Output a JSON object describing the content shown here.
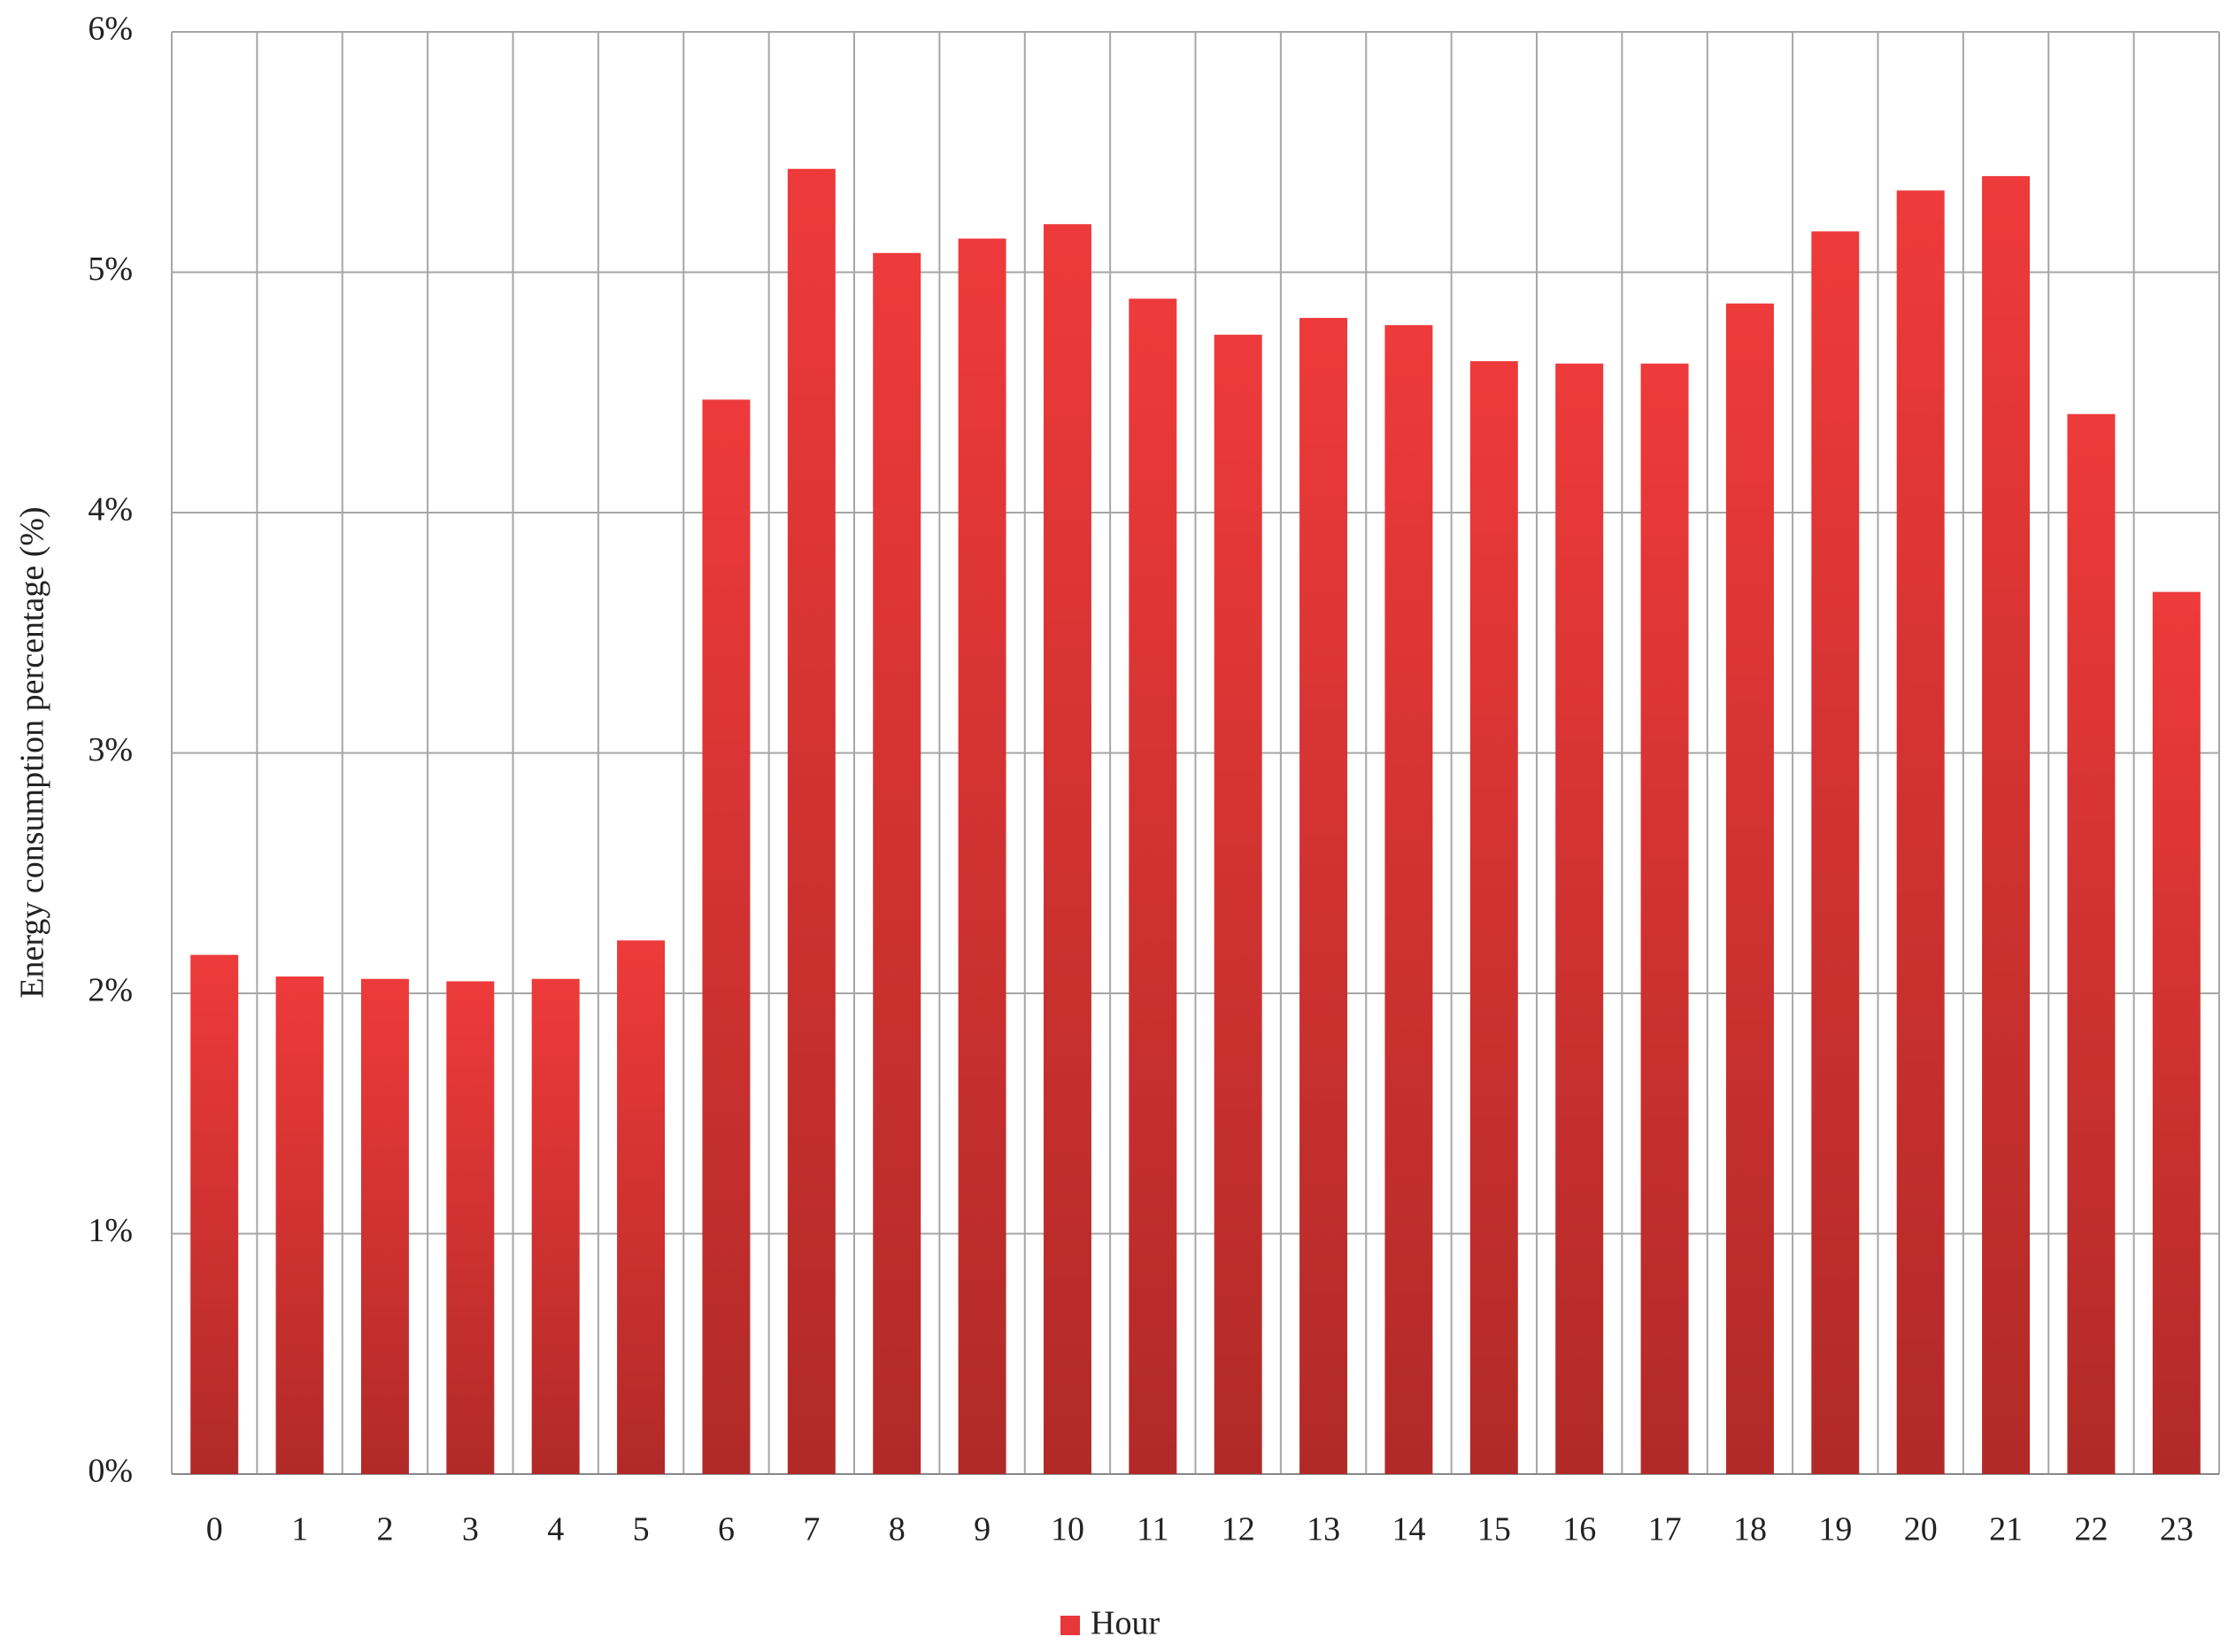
{
  "chart_data": {
    "type": "bar",
    "y_label": "Energy consumption percentage (%)",
    "categories": [
      "0",
      "1",
      "2",
      "3",
      "4",
      "5",
      "6",
      "7",
      "8",
      "9",
      "10",
      "11",
      "12",
      "13",
      "14",
      "15",
      "16",
      "17",
      "18",
      "19",
      "20",
      "21",
      "22",
      "23"
    ],
    "series": [
      {
        "name": "Hour",
        "color": "#e8373a",
        "values": [
          2.16,
          2.07,
          2.06,
          2.05,
          2.06,
          2.22,
          4.47,
          5.43,
          5.08,
          5.14,
          5.2,
          4.89,
          4.74,
          4.81,
          4.78,
          4.63,
          4.62,
          4.62,
          4.87,
          5.17,
          5.34,
          5.4,
          4.41,
          3.67
        ]
      }
    ],
    "ylim": [
      0,
      6
    ],
    "yticks": [
      {
        "value": 0,
        "label": "0%"
      },
      {
        "value": 1,
        "label": "1%"
      },
      {
        "value": 2,
        "label": "2%"
      },
      {
        "value": 3,
        "label": "3%"
      },
      {
        "value": 4,
        "label": "4%"
      },
      {
        "value": 5,
        "label": "5%"
      },
      {
        "value": 6,
        "label": "6%"
      }
    ],
    "grid": true,
    "legend": "bottom"
  }
}
